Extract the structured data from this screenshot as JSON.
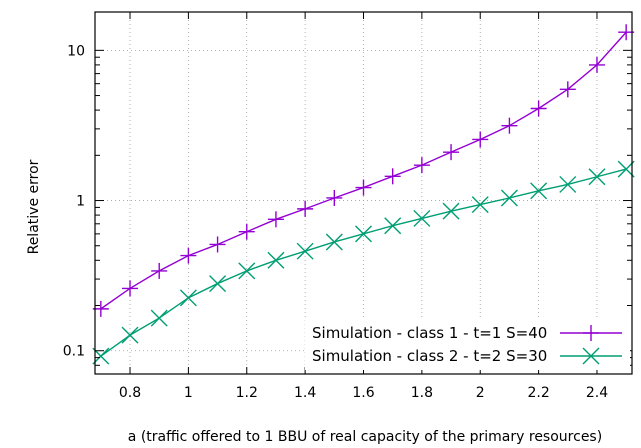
{
  "chart_data": {
    "type": "line",
    "title": "",
    "xlabel": "a (traffic offered to 1 BBU of real capacity of the primary resources)",
    "ylabel": "Relative error",
    "xlim": [
      0.68,
      2.52
    ],
    "ylim": [
      0.07,
      18
    ],
    "yscale": "log",
    "grid": true,
    "legend_position": "bottom-right",
    "xticks": [
      0.8,
      1,
      1.2,
      1.4,
      1.6,
      1.8,
      2,
      2.2,
      2.4
    ],
    "xtick_labels": [
      "0.8",
      "1",
      "1.2",
      "1.4",
      "1.6",
      "1.8",
      "2",
      "2.2",
      "2.4"
    ],
    "yticks": [
      0.1,
      1,
      10
    ],
    "ytick_labels": [
      "0.1",
      "1",
      "10"
    ],
    "x": [
      0.7,
      0.8,
      0.9,
      1.0,
      1.1,
      1.2,
      1.3,
      1.4,
      1.5,
      1.6,
      1.7,
      1.8,
      1.9,
      2.0,
      2.1,
      2.2,
      2.3,
      2.4,
      2.5
    ],
    "series": [
      {
        "name": "Simulation - class 1 - t=1 S=40",
        "color": "#9400d3",
        "marker": "plus",
        "values": [
          0.19,
          0.26,
          0.34,
          0.43,
          0.51,
          0.62,
          0.75,
          0.88,
          1.04,
          1.22,
          1.45,
          1.72,
          2.1,
          2.55,
          3.15,
          4.1,
          5.5,
          8.0,
          13.2
        ]
      },
      {
        "name": "Simulation - class 2 - t=2 S=30",
        "color": "#009e73",
        "marker": "cross",
        "values": [
          0.092,
          0.127,
          0.165,
          0.225,
          0.28,
          0.34,
          0.4,
          0.46,
          0.53,
          0.6,
          0.68,
          0.76,
          0.85,
          0.94,
          1.04,
          1.16,
          1.28,
          1.44,
          1.62
        ]
      }
    ]
  }
}
